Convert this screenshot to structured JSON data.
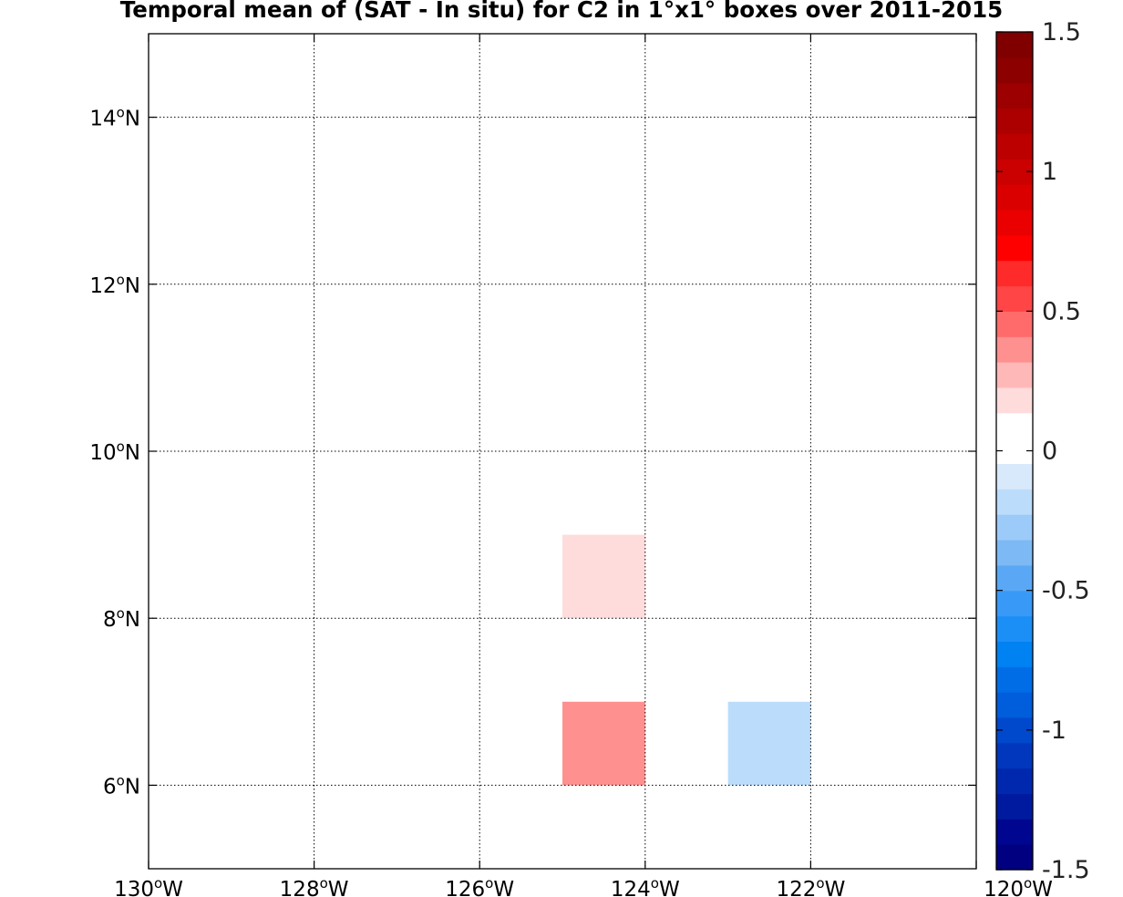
{
  "chart_data": {
    "type": "heatmap",
    "title": "Temporal mean of (SAT - In situ) for C2 in 1°x1° boxes over 2011-2015",
    "xlabel": "",
    "ylabel": "",
    "xlim": [
      -130,
      -120
    ],
    "ylim": [
      5,
      15
    ],
    "grid": true,
    "x_ticks": [
      {
        "value": -130,
        "deg": "130",
        "sup": "o",
        "hem": "W"
      },
      {
        "value": -128,
        "deg": "128",
        "sup": "o",
        "hem": "W"
      },
      {
        "value": -126,
        "deg": "126",
        "sup": "o",
        "hem": "W"
      },
      {
        "value": -124,
        "deg": "124",
        "sup": "o",
        "hem": "W"
      },
      {
        "value": -122,
        "deg": "122",
        "sup": "o",
        "hem": "W"
      },
      {
        "value": -120,
        "deg": "120",
        "sup": "o",
        "hem": "W"
      }
    ],
    "y_ticks": [
      {
        "value": 6,
        "deg": "6",
        "sup": "o",
        "hem": "N"
      },
      {
        "value": 8,
        "deg": "8",
        "sup": "o",
        "hem": "N"
      },
      {
        "value": 10,
        "deg": "10",
        "sup": "o",
        "hem": "N"
      },
      {
        "value": 12,
        "deg": "12",
        "sup": "o",
        "hem": "N"
      },
      {
        "value": 14,
        "deg": "14",
        "sup": "o",
        "hem": "N"
      }
    ],
    "cells": [
      {
        "lon_min": -125,
        "lon_max": -124,
        "lat_min": 8,
        "lat_max": 9,
        "value": 0.15
      },
      {
        "lon_min": -125,
        "lon_max": -124,
        "lat_min": 6,
        "lat_max": 7,
        "value": 0.4
      },
      {
        "lon_min": -123,
        "lon_max": -122,
        "lat_min": 6,
        "lat_max": 7,
        "value": -0.15
      }
    ],
    "colorbar": {
      "min": -1.5,
      "max": 1.5,
      "ticks": [
        {
          "value": 1.5,
          "label": "1.5"
        },
        {
          "value": 1,
          "label": "1"
        },
        {
          "value": 0.5,
          "label": "0.5"
        },
        {
          "value": 0,
          "label": "0"
        },
        {
          "value": -0.5,
          "label": "-0.5"
        },
        {
          "value": -1,
          "label": "-1"
        },
        {
          "value": -1.5,
          "label": "-1.5"
        }
      ],
      "colors": [
        "#000080",
        "#00068f",
        "#001a9f",
        "#0028ae",
        "#0037bd",
        "#0048cc",
        "#005ddb",
        "#006de7",
        "#0082f3",
        "#1c8ff7",
        "#3999f7",
        "#5aa8f5",
        "#7db9f5",
        "#9ccbf9",
        "#bcdcfb",
        "#d8e9fc",
        "#ffffff",
        "#ffffff",
        "#ffdcdc",
        "#ffb8b8",
        "#ff9090",
        "#ff6b6b",
        "#ff4545",
        "#ff2a2a",
        "#ff0000",
        "#ea0000",
        "#db0000",
        "#cb0000",
        "#bc0000",
        "#ac0000",
        "#9c0000",
        "#8c0000",
        "#800000"
      ]
    }
  }
}
